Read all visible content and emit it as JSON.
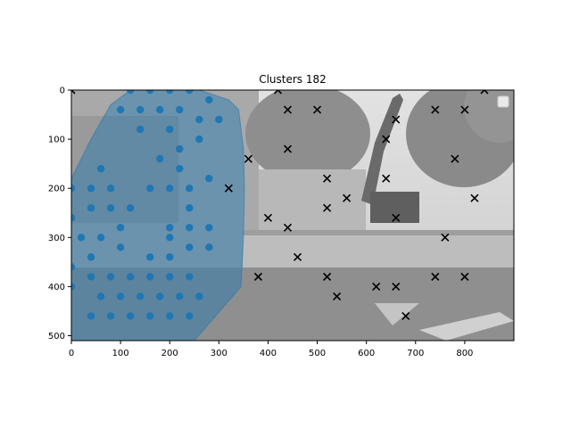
{
  "chart_data": {
    "type": "scatter",
    "title": "Clusters 182",
    "xlabel": "",
    "ylabel": "",
    "xlim": [
      0,
      900
    ],
    "ylim": [
      510,
      0
    ],
    "x_ticks": [
      0,
      100,
      200,
      300,
      400,
      500,
      600,
      700,
      800
    ],
    "y_ticks": [
      0,
      100,
      200,
      300,
      400,
      500
    ],
    "background": "grayscale street photo with excavator",
    "legend": "top-right (empty)",
    "colors": {
      "dots": "#1f77b4",
      "region": "#1f77b4",
      "crosses": "#000000"
    },
    "region_hull": [
      [
        0,
        180
      ],
      [
        0,
        510
      ],
      [
        40,
        510
      ],
      [
        250,
        510
      ],
      [
        345,
        400
      ],
      [
        350,
        300
      ],
      [
        352,
        200
      ],
      [
        350,
        120
      ],
      [
        340,
        40
      ],
      [
        320,
        20
      ],
      [
        260,
        0
      ],
      [
        120,
        0
      ],
      [
        80,
        30
      ],
      [
        40,
        100
      ],
      [
        0,
        180
      ]
    ],
    "series": [
      {
        "marker": "o",
        "points": [
          [
            120,
            0
          ],
          [
            160,
            0
          ],
          [
            200,
            0
          ],
          [
            240,
            0
          ],
          [
            280,
            20
          ],
          [
            100,
            40
          ],
          [
            140,
            40
          ],
          [
            180,
            40
          ],
          [
            220,
            40
          ],
          [
            260,
            60
          ],
          [
            300,
            60
          ],
          [
            140,
            80
          ],
          [
            200,
            80
          ],
          [
            260,
            100
          ],
          [
            220,
            120
          ],
          [
            180,
            140
          ],
          [
            60,
            160
          ],
          [
            220,
            160
          ],
          [
            280,
            180
          ],
          [
            0,
            200
          ],
          [
            40,
            200
          ],
          [
            80,
            200
          ],
          [
            160,
            200
          ],
          [
            200,
            200
          ],
          [
            240,
            200
          ],
          [
            40,
            240
          ],
          [
            80,
            240
          ],
          [
            120,
            240
          ],
          [
            240,
            240
          ],
          [
            0,
            260
          ],
          [
            100,
            280
          ],
          [
            200,
            280
          ],
          [
            240,
            280
          ],
          [
            280,
            280
          ],
          [
            20,
            300
          ],
          [
            60,
            300
          ],
          [
            200,
            300
          ],
          [
            100,
            320
          ],
          [
            240,
            320
          ],
          [
            280,
            320
          ],
          [
            40,
            340
          ],
          [
            160,
            340
          ],
          [
            200,
            340
          ],
          [
            0,
            360
          ],
          [
            40,
            380
          ],
          [
            80,
            380
          ],
          [
            120,
            380
          ],
          [
            160,
            380
          ],
          [
            200,
            380
          ],
          [
            240,
            380
          ],
          [
            0,
            400
          ],
          [
            60,
            420
          ],
          [
            100,
            420
          ],
          [
            140,
            420
          ],
          [
            180,
            420
          ],
          [
            220,
            420
          ],
          [
            260,
            420
          ],
          [
            40,
            460
          ],
          [
            80,
            460
          ],
          [
            120,
            460
          ],
          [
            160,
            460
          ],
          [
            200,
            460
          ],
          [
            240,
            460
          ]
        ]
      },
      {
        "marker": "x",
        "points": [
          [
            0,
            0
          ],
          [
            420,
            0
          ],
          [
            840,
            0
          ],
          [
            440,
            40
          ],
          [
            500,
            40
          ],
          [
            740,
            40
          ],
          [
            800,
            40
          ],
          [
            660,
            60
          ],
          [
            640,
            100
          ],
          [
            440,
            120
          ],
          [
            360,
            140
          ],
          [
            780,
            140
          ],
          [
            520,
            180
          ],
          [
            640,
            180
          ],
          [
            320,
            200
          ],
          [
            560,
            220
          ],
          [
            820,
            220
          ],
          [
            520,
            240
          ],
          [
            400,
            260
          ],
          [
            660,
            260
          ],
          [
            440,
            280
          ],
          [
            760,
            300
          ],
          [
            460,
            340
          ],
          [
            380,
            380
          ],
          [
            520,
            380
          ],
          [
            740,
            380
          ],
          [
            800,
            380
          ],
          [
            620,
            400
          ],
          [
            660,
            400
          ],
          [
            540,
            420
          ],
          [
            680,
            460
          ]
        ]
      }
    ]
  }
}
